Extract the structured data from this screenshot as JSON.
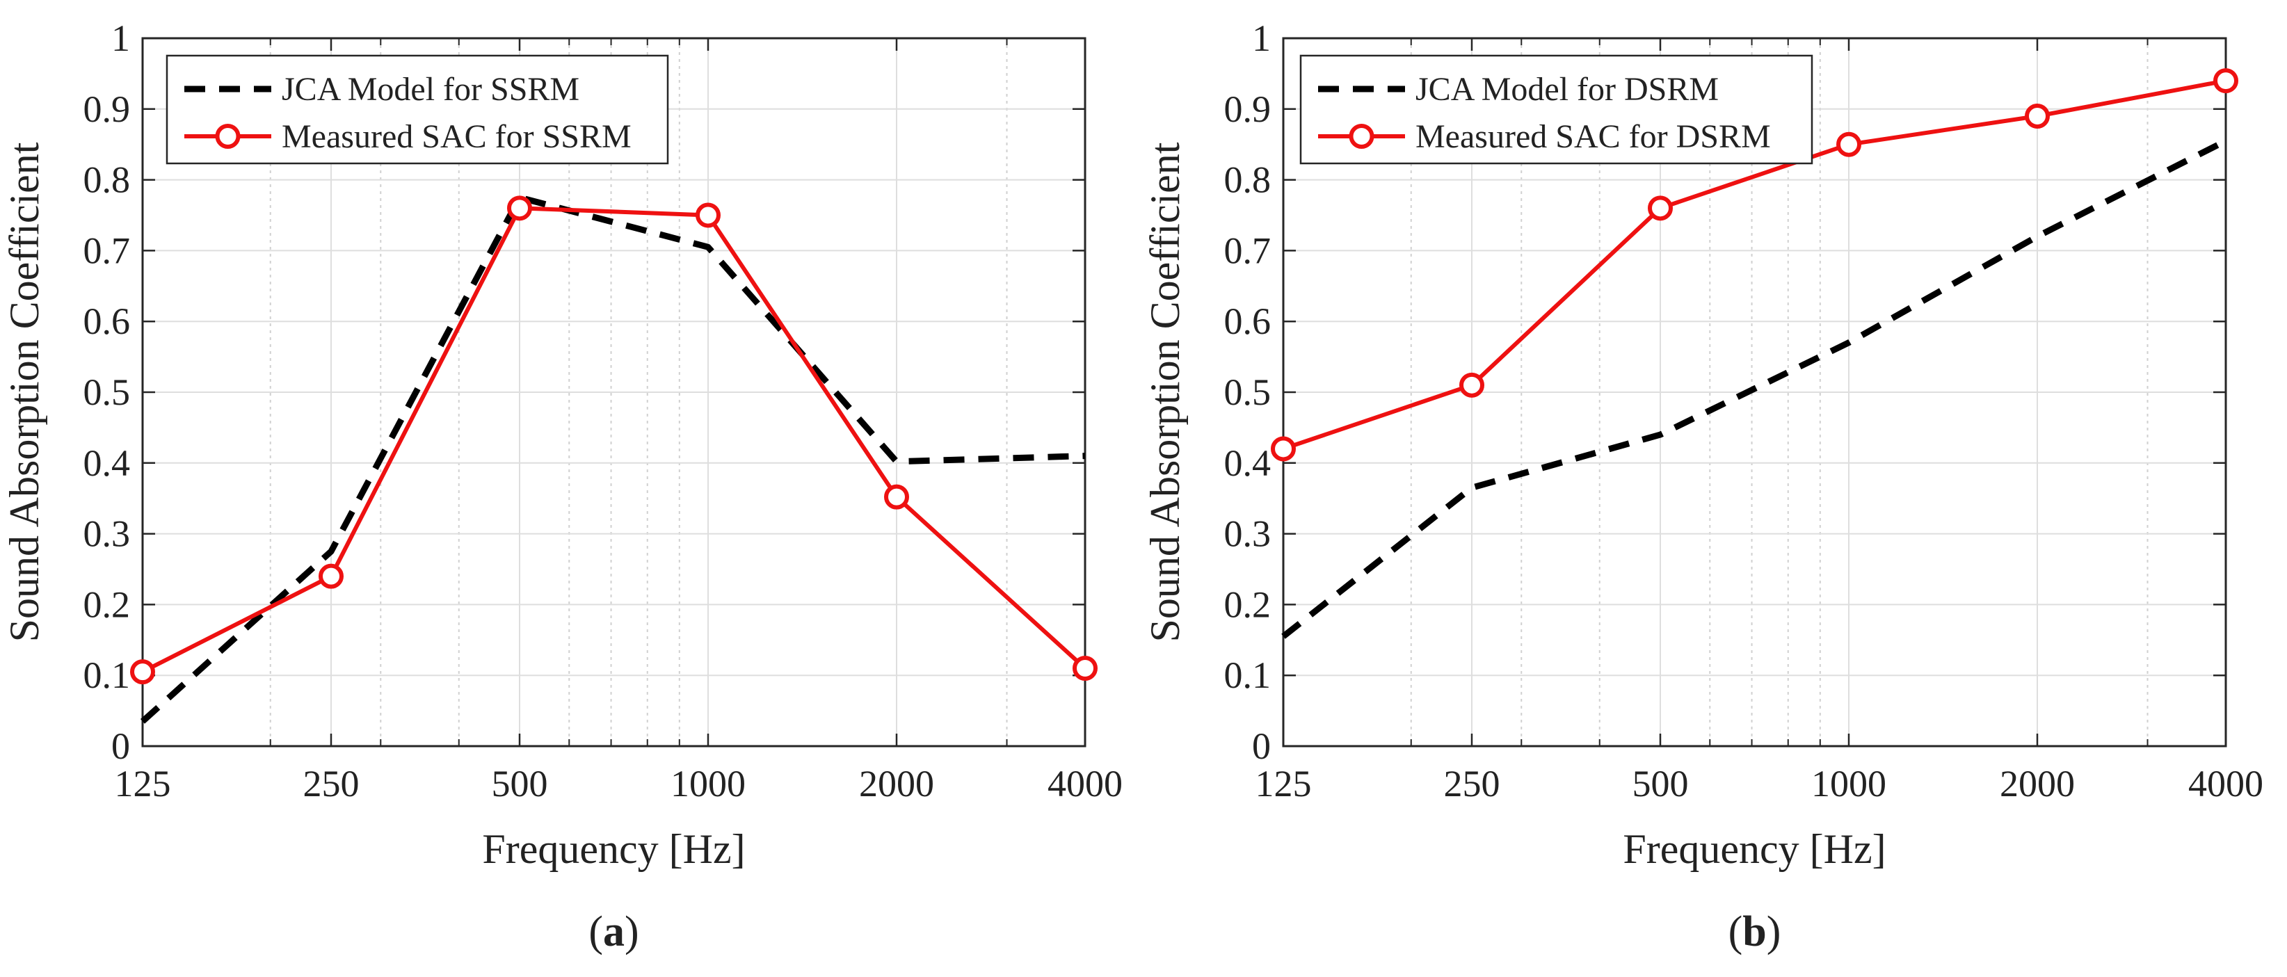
{
  "chart_data": [
    {
      "type": "line",
      "panel_label": "a",
      "xlabel": "Frequency [Hz]",
      "ylabel": "Sound Absorption Coefficient",
      "x_scale": "log2",
      "x_ticks": [
        125,
        250,
        500,
        1000,
        2000,
        4000
      ],
      "x_tick_labels": [
        "125",
        "250",
        "500",
        "1000",
        "2000",
        "4000"
      ],
      "xlim": [
        125,
        4000
      ],
      "ylim": [
        0,
        1
      ],
      "y_ticks": [
        0,
        0.1,
        0.2,
        0.3,
        0.4,
        0.5,
        0.6,
        0.7,
        0.8,
        0.9,
        1
      ],
      "y_tick_labels": [
        "0",
        "0.1",
        "0.2",
        "0.3",
        "0.4",
        "0.5",
        "0.6",
        "0.7",
        "0.8",
        "0.9",
        "1"
      ],
      "grid": true,
      "legend_position": "top-left",
      "series": [
        {
          "name": "JCA Model for SSRM",
          "style": "dashed",
          "color": "#000000",
          "marker": "none",
          "x": [
            125,
            250,
            500,
            1000,
            2000,
            4000
          ],
          "y": [
            0.035,
            0.275,
            0.775,
            0.705,
            0.402,
            0.41
          ]
        },
        {
          "name": "Measured SAC for SSRM",
          "style": "solid",
          "color": "#ee1111",
          "marker": "circle",
          "x": [
            125,
            250,
            500,
            1000,
            2000,
            4000
          ],
          "y": [
            0.105,
            0.24,
            0.76,
            0.75,
            0.352,
            0.11
          ]
        }
      ]
    },
    {
      "type": "line",
      "panel_label": "b",
      "xlabel": "Frequency [Hz]",
      "ylabel": "Sound Absorption Coefficient",
      "x_scale": "log2",
      "x_ticks": [
        125,
        250,
        500,
        1000,
        2000,
        4000
      ],
      "x_tick_labels": [
        "125",
        "250",
        "500",
        "1000",
        "2000",
        "4000"
      ],
      "xlim": [
        125,
        4000
      ],
      "ylim": [
        0,
        1
      ],
      "y_ticks": [
        0,
        0.1,
        0.2,
        0.3,
        0.4,
        0.5,
        0.6,
        0.7,
        0.8,
        0.9,
        1
      ],
      "y_tick_labels": [
        "0",
        "0.1",
        "0.2",
        "0.3",
        "0.4",
        "0.5",
        "0.6",
        "0.7",
        "0.8",
        "0.9",
        "1"
      ],
      "grid": true,
      "legend_position": "top-left",
      "series": [
        {
          "name": "JCA Model for DSRM",
          "style": "dashed",
          "color": "#000000",
          "marker": "none",
          "x": [
            125,
            250,
            500,
            1000,
            2000,
            4000
          ],
          "y": [
            0.155,
            0.365,
            0.44,
            0.57,
            0.72,
            0.855
          ]
        },
        {
          "name": "Measured SAC for DSRM",
          "style": "solid",
          "color": "#ee1111",
          "marker": "circle",
          "x": [
            125,
            250,
            500,
            1000,
            2000,
            4000
          ],
          "y": [
            0.42,
            0.51,
            0.76,
            0.85,
            0.89,
            0.94
          ]
        }
      ]
    }
  ]
}
